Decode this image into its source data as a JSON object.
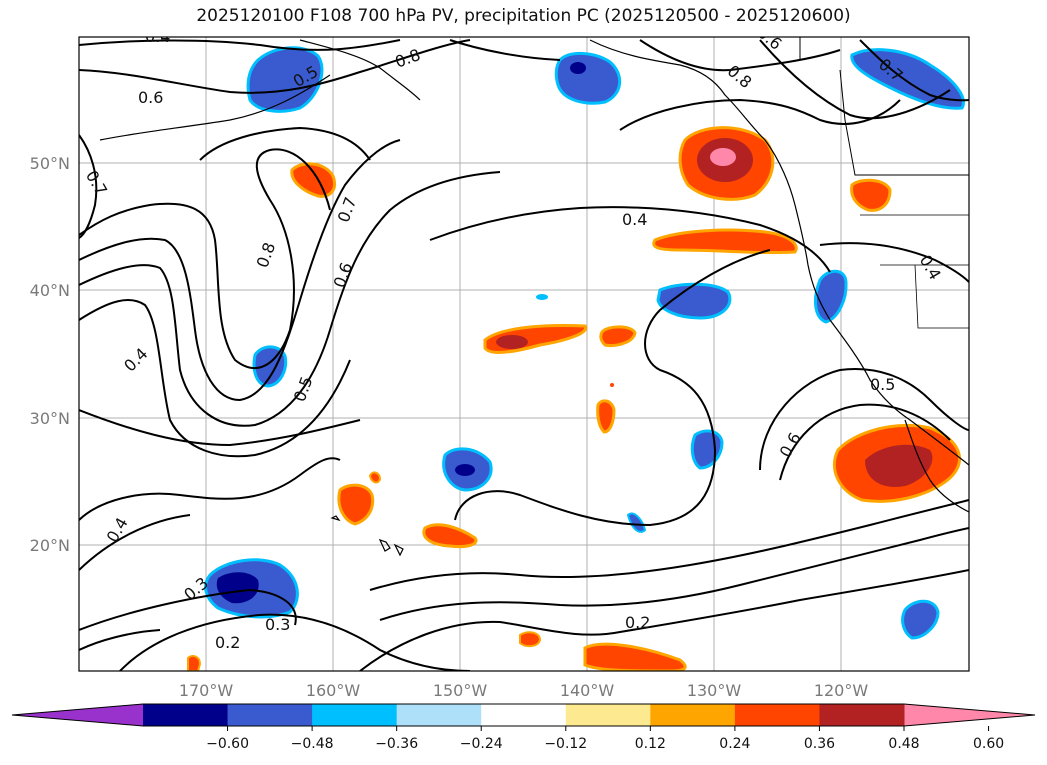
{
  "title": "2025120100 F108 700 hPa PV, precipitation PC (2025120500 - 2025120600)",
  "lat_labels": [
    "50°N",
    "40°N",
    "30°N",
    "20°N"
  ],
  "lon_labels": [
    "170°W",
    "160°W",
    "150°W",
    "140°W",
    "130°W",
    "120°W"
  ],
  "contour_labels": [
    "0.4",
    "0.5",
    "0.6",
    "0.6",
    "0.7",
    "0.7",
    "0.8",
    "0.8",
    "0.4",
    "0.8",
    "0.7",
    "0.6",
    "0.4",
    "0.5",
    "0.4",
    "0.2",
    "0.3",
    "0.3",
    "0.2",
    "0.6",
    "0.5",
    "0.4"
  ],
  "colorbar": {
    "ticks": [
      "−0.60",
      "−0.48",
      "−0.36",
      "−0.24",
      "−0.12",
      "0.12",
      "0.24",
      "0.36",
      "0.48",
      "0.60"
    ],
    "colors": [
      "#9932cc",
      "#00008b",
      "#3a5bd0",
      "#00bfff",
      "#aee0fa",
      "#ffffff",
      "#fde98f",
      "#ffa500",
      "#ff4500",
      "#b22222",
      "#ff88aa"
    ]
  }
}
